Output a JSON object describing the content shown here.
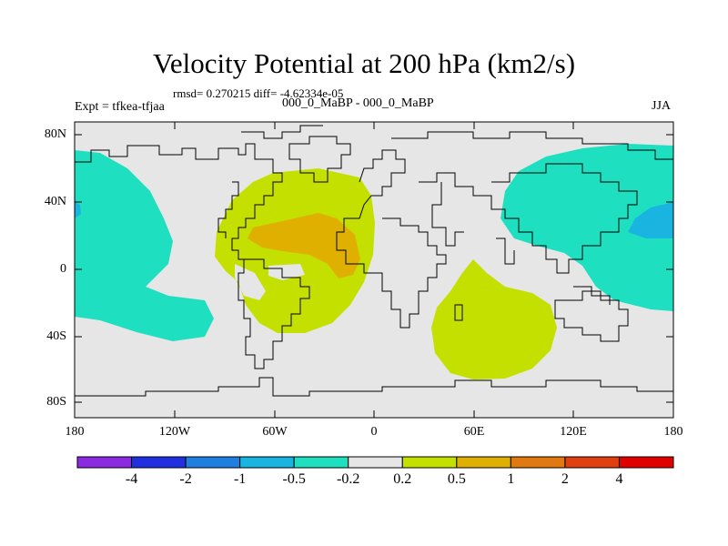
{
  "title": "Velocity Potential at 200 hPa (km2/s)",
  "stats_line": "rmsd= 0.270215 diff= -4.62334e-05",
  "left_label": "Expt = tfkea-tfjaa",
  "center_label": "000_0_MaBP - 000_0_MaBP",
  "right_label": "JJA",
  "lat_ticks": [
    "80N",
    "40N",
    "0",
    "40S",
    "80S"
  ],
  "lon_ticks": [
    "180",
    "120W",
    "60W",
    "0",
    "60E",
    "120E",
    "180"
  ],
  "colorbar": {
    "labels": [
      "-4",
      "-2",
      "-1",
      "-0.5",
      "-0.2",
      "0.2",
      "0.5",
      "1",
      "2",
      "4"
    ],
    "colors": [
      "#8a2be2",
      "#2030e0",
      "#1e7fe0",
      "#19b4e0",
      "#1ee0c0",
      "#e6e6e6",
      "#c4e000",
      "#e0b000",
      "#e07a10",
      "#e04010",
      "#e00000"
    ]
  },
  "fill_colors": {
    "background": "#e6e6e6",
    "neg_0_2": "#1ee0c0",
    "neg_0_5": "#19b4e0",
    "pos_0_2": "#c4e000",
    "pos_0_5": "#e0b000"
  }
}
